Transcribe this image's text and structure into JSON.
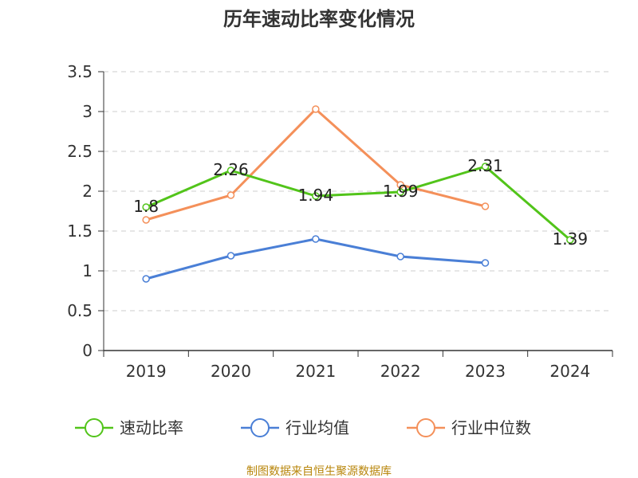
{
  "chart_data": {
    "type": "line",
    "title": "历年速动比率变化情况",
    "categories": [
      "2019",
      "2020",
      "2021",
      "2022",
      "2023",
      "2024"
    ],
    "y_ticks": [
      "0",
      "0.5",
      "1",
      "1.5",
      "2",
      "2.5",
      "3",
      "3.5"
    ],
    "ylim": [
      0,
      3.5
    ],
    "grid": true,
    "legend_position": "bottom",
    "series": [
      {
        "name": "速动比率",
        "color": "#52c41a",
        "values": [
          1.8,
          2.26,
          1.94,
          1.99,
          2.31,
          1.39
        ],
        "labels": [
          "1.8",
          "2.26",
          "1.94",
          "1.99",
          "2.31",
          "1.39"
        ]
      },
      {
        "name": "行业均值",
        "color": "#4a7fd6",
        "values": [
          0.9,
          1.19,
          1.4,
          1.18,
          1.1,
          null
        ],
        "labels": []
      },
      {
        "name": "行业中位数",
        "color": "#f4905a",
        "values": [
          1.64,
          1.95,
          3.03,
          2.08,
          1.81,
          null
        ],
        "labels": []
      }
    ],
    "source": "制图数据来自恒生聚源数据库"
  }
}
